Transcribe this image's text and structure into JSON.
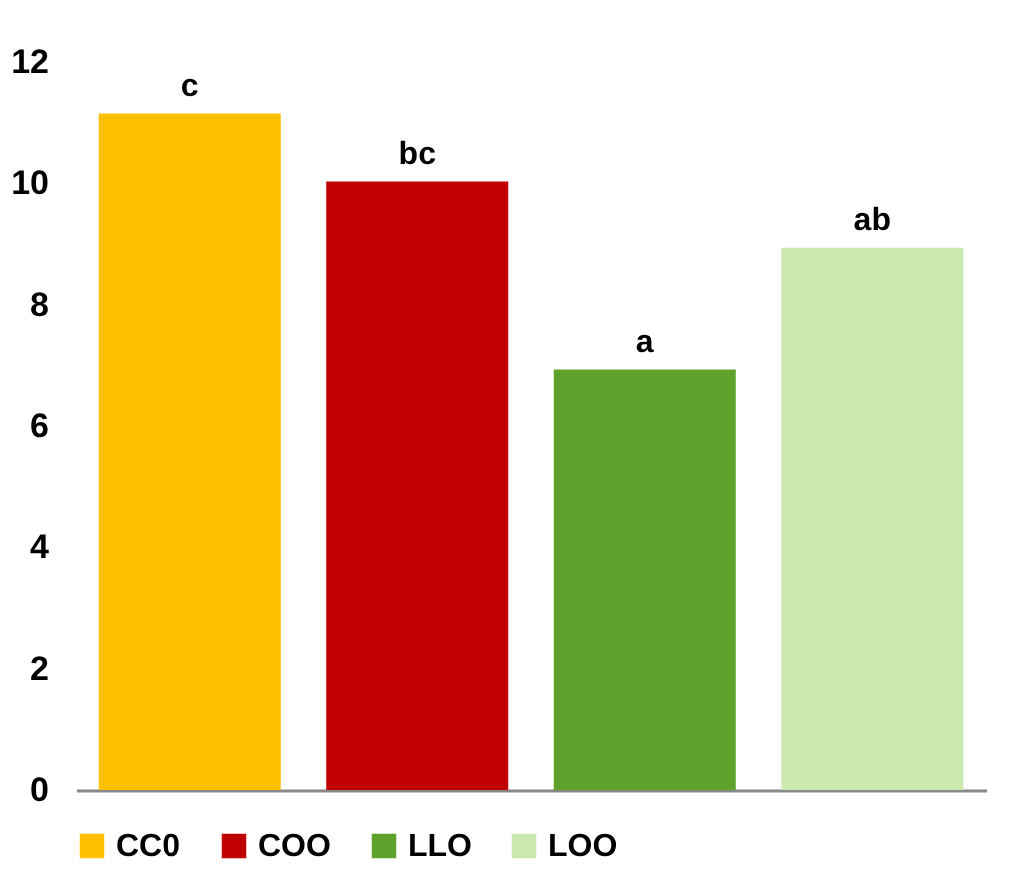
{
  "chart_data": {
    "type": "bar",
    "categories": [
      null
    ],
    "series": [
      {
        "name": "CC0",
        "color": "#ffc000",
        "values": [
          11.15
        ],
        "value_labels": [
          "c"
        ]
      },
      {
        "name": "COO",
        "color": "#c00000",
        "values": [
          10.03
        ],
        "value_labels": [
          "bc"
        ]
      },
      {
        "name": "LLO",
        "color": "#5fa22b",
        "values": [
          6.93
        ],
        "value_labels": [
          "a"
        ]
      },
      {
        "name": "LOO",
        "color": "#cbeab0",
        "values": [
          8.94
        ],
        "value_labels": [
          "ab"
        ]
      }
    ],
    "ylim": [
      0,
      12
    ],
    "yticks": [
      0,
      2,
      4,
      6,
      8,
      10,
      12
    ],
    "legend": "bottom"
  }
}
